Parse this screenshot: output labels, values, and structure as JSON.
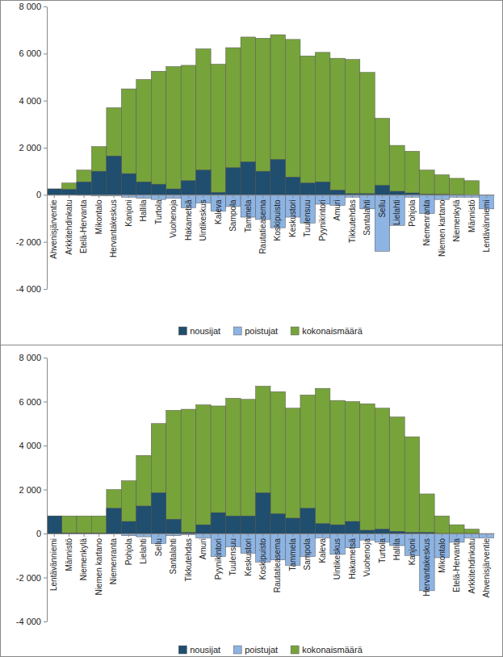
{
  "chart_data": [
    {
      "type": "bar",
      "stacked": false,
      "legend": "bottom",
      "categories": [
        "Ahvenisjärventie",
        "Arkkitehdinkatu",
        "Etelä-Hervanta",
        "Mikontalo",
        "Hervantakeskus",
        "Kanjoni",
        "Hallila",
        "Turtola",
        "Vuohenoja",
        "Hakametsä",
        "Uintikeskus",
        "Kaleva",
        "Sampola",
        "Tammela",
        "Rautatieasema",
        "Koskipuisto",
        "Keskustori",
        "Tuulensuu",
        "Pyynikintori",
        "Amuri",
        "Tikkutehdas",
        "Santalahti",
        "Sellu",
        "Lielahti",
        "Pohjola",
        "Niemenranta",
        "Niemen kartano",
        "Niemenkylä",
        "Männistö",
        "Lentävänniemi"
      ],
      "series": [
        {
          "name": "nousijat",
          "color": "#1f4e6e",
          "values": [
            250,
            230,
            550,
            1000,
            1650,
            900,
            550,
            450,
            250,
            600,
            1050,
            100,
            1150,
            1400,
            1000,
            1500,
            750,
            500,
            550,
            200,
            50,
            50,
            400,
            150,
            80,
            30,
            20,
            10,
            0,
            0
          ]
        },
        {
          "name": "poistujat",
          "color": "#8db4e2",
          "values": [
            0,
            0,
            -20,
            -50,
            -50,
            -100,
            -150,
            -200,
            -150,
            -550,
            -350,
            -700,
            -500,
            -950,
            -1050,
            -1400,
            -950,
            -1200,
            -400,
            -450,
            -100,
            -600,
            -2400,
            -1300,
            -100,
            -800,
            -200,
            -100,
            -100,
            -600
          ]
        },
        {
          "name": "kokonaismäärä",
          "color": "#77a33b",
          "values": [
            250,
            500,
            1050,
            2050,
            3700,
            4500,
            4900,
            5250,
            5450,
            5500,
            6200,
            5550,
            6250,
            6700,
            6650,
            6800,
            6600,
            5900,
            6050,
            5800,
            5750,
            5200,
            3250,
            2100,
            1850,
            1050,
            850,
            700,
            600,
            0
          ]
        }
      ],
      "ylim": [
        -4000,
        8000
      ],
      "yticks": [
        {
          "value": -4000,
          "label": "-4 000"
        },
        {
          "value": -2000,
          "label": "-2 000"
        },
        0,
        {
          "value": 2000,
          "label": "2 000"
        },
        {
          "value": 4000,
          "label": "4 000"
        },
        {
          "value": 6000,
          "label": "6 000"
        },
        {
          "value": 8000,
          "label": "8 000"
        }
      ]
    },
    {
      "type": "bar",
      "stacked": false,
      "legend": "bottom",
      "categories": [
        "Lentävänniemi",
        "Männistö",
        "Niemenkylä",
        "Niemen kartano",
        "Niemenranta",
        "Pohjola",
        "Lielahti",
        "Sellu",
        "Santalahti",
        "Tikkutehdas",
        "Amuri",
        "Pyynikintori",
        "Tuulensuu",
        "Keskustori",
        "Koskipuisto",
        "Rautatieasema",
        "Tammela",
        "Sampola",
        "Kaleva",
        "Uintikeskus",
        "Hakametsä",
        "Vuohenoja",
        "Turtola",
        "Hallila",
        "Kanjoni",
        "Hervantakeskus",
        "Mikontalo",
        "Etelä-Hervanta",
        "Arkkitehdinkatu",
        "Ahvenisjärventie"
      ],
      "series": [
        {
          "name": "nousijat",
          "color": "#1f4e6e",
          "values": [
            800,
            20,
            10,
            10,
            1150,
            550,
            1250,
            1850,
            650,
            50,
            400,
            950,
            800,
            800,
            1850,
            900,
            700,
            1150,
            450,
            400,
            550,
            150,
            200,
            100,
            50,
            50,
            0,
            0,
            0,
            0
          ]
        },
        {
          "name": "poistujat",
          "color": "#8db4e2",
          "values": [
            0,
            0,
            0,
            0,
            0,
            -100,
            -150,
            -450,
            -100,
            -50,
            -200,
            -1050,
            -600,
            -900,
            -1300,
            -1200,
            -1450,
            -1050,
            -200,
            -950,
            -650,
            -300,
            -400,
            -550,
            -1000,
            -2600,
            -1100,
            -400,
            -200,
            -200
          ]
        },
        {
          "name": "kokonaismäärä",
          "color": "#77a33b",
          "values": [
            800,
            800,
            800,
            800,
            2000,
            2400,
            3550,
            5000,
            5600,
            5650,
            5850,
            5800,
            6150,
            6100,
            6700,
            6450,
            5700,
            6300,
            6600,
            6050,
            6000,
            5900,
            5700,
            5300,
            4400,
            1800,
            800,
            400,
            200,
            0
          ]
        }
      ],
      "ylim": [
        -4000,
        8000
      ],
      "yticks": [
        {
          "value": -4000,
          "label": "-4 000"
        },
        {
          "value": -2000,
          "label": "-2 000"
        },
        0,
        {
          "value": 2000,
          "label": "2 000"
        },
        {
          "value": 4000,
          "label": "4 000"
        },
        {
          "value": 6000,
          "label": "6 000"
        },
        {
          "value": 8000,
          "label": "8 000"
        }
      ]
    }
  ]
}
